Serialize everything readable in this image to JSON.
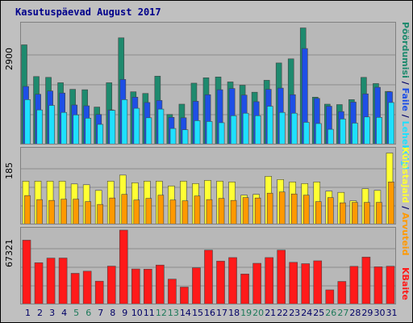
{
  "title": "Kasutuspäevad August 2017",
  "panels": {
    "top": {
      "ymax": "2900",
      "labels": [
        "Pöördumisi",
        "/",
        "Faile",
        "/",
        "Lehekülgi"
      ]
    },
    "middle": {
      "ymax": "185",
      "labels": [
        "Külastajaid",
        "/",
        "Arvuteid"
      ]
    },
    "bottom": {
      "ymax": "67321",
      "labels": [
        "KBaite"
      ]
    }
  },
  "colors": {
    "hits": "#1e8a6e",
    "files": "#1e4fe6",
    "pages": "#1ee0ff",
    "visits": "#ffff33",
    "sites": "#ff9900",
    "kbytes": "#ff1a1a",
    "weekend": "#1e7a5a",
    "weekday": "#000066"
  },
  "chart_data": [
    {
      "type": "bar",
      "title": "Kasutuspäevad August 2017",
      "categories": [
        "1",
        "2",
        "3",
        "4",
        "5",
        "6",
        "7",
        "8",
        "9",
        "10",
        "11",
        "12",
        "13",
        "14",
        "15",
        "16",
        "17",
        "18",
        "19",
        "20",
        "21",
        "22",
        "23",
        "24",
        "25",
        "26",
        "27",
        "28",
        "29",
        "30",
        "31"
      ],
      "weekend_days": [
        "5",
        "6",
        "12",
        "13",
        "19",
        "20",
        "26",
        "27"
      ],
      "ylim": [
        0,
        2900
      ],
      "series": [
        {
          "name": "Pöördumisi",
          "values": [
            2420,
            1650,
            1630,
            1500,
            1340,
            1330,
            910,
            1500,
            2590,
            1280,
            1240,
            1660,
            730,
            980,
            1490,
            1620,
            1640,
            1520,
            1440,
            1270,
            1560,
            1980,
            2080,
            2830,
            1150,
            980,
            970,
            1090,
            1630,
            1480,
            1290
          ]
        },
        {
          "name": "Faile",
          "values": [
            1410,
            1220,
            1300,
            1250,
            960,
            940,
            730,
            840,
            1580,
            1150,
            1020,
            1070,
            660,
            650,
            1050,
            1210,
            1330,
            1360,
            1200,
            1040,
            1340,
            1370,
            1210,
            2330,
            1120,
            930,
            800,
            1030,
            1230,
            1390,
            1280
          ]
        },
        {
          "name": "Lehekülgi",
          "values": [
            1090,
            840,
            950,
            780,
            720,
            640,
            490,
            830,
            1090,
            880,
            650,
            860,
            390,
            360,
            580,
            560,
            530,
            700,
            760,
            700,
            930,
            780,
            760,
            540,
            510,
            370,
            620,
            520,
            670,
            660,
            1020
          ]
        }
      ]
    },
    {
      "type": "bar",
      "categories": [
        "1",
        "2",
        "3",
        "4",
        "5",
        "6",
        "7",
        "8",
        "9",
        "10",
        "11",
        "12",
        "13",
        "14",
        "15",
        "16",
        "17",
        "18",
        "19",
        "20",
        "21",
        "22",
        "23",
        "24",
        "25",
        "26",
        "27",
        "28",
        "29",
        "30",
        "31"
      ],
      "ylim": [
        0,
        185
      ],
      "series": [
        {
          "name": "Külastajaid",
          "values": [
            108,
            108,
            108,
            108,
            101,
            99,
            85,
            108,
            123,
            104,
            108,
            108,
            96,
            108,
            102,
            110,
            108,
            106,
            73,
            75,
            120,
            112,
            106,
            102,
            106,
            83,
            80,
            59,
            89,
            85,
            178
          ]
        },
        {
          "name": "Arvuteid",
          "values": [
            72,
            62,
            60,
            63,
            63,
            57,
            50,
            66,
            75,
            61,
            65,
            73,
            61,
            59,
            71,
            62,
            65,
            60,
            67,
            66,
            78,
            81,
            76,
            73,
            57,
            67,
            54,
            55,
            55,
            55,
            106
          ]
        }
      ]
    },
    {
      "type": "bar",
      "categories": [
        "1",
        "2",
        "3",
        "4",
        "5",
        "6",
        "7",
        "8",
        "9",
        "10",
        "11",
        "12",
        "13",
        "14",
        "15",
        "16",
        "17",
        "18",
        "19",
        "20",
        "21",
        "22",
        "23",
        "24",
        "25",
        "26",
        "27",
        "28",
        "29",
        "30",
        "31"
      ],
      "ylim": [
        0,
        67321
      ],
      "series": [
        {
          "name": "KBaite",
          "values": [
            58230,
            37770,
            42000,
            42060,
            28190,
            30140,
            21070,
            34720,
            67321,
            32130,
            31960,
            35690,
            22950,
            15740,
            33210,
            49200,
            39220,
            42460,
            27580,
            37280,
            42470,
            49200,
            38170,
            36940,
            39520,
            13170,
            20830,
            34510,
            42890,
            34090,
            34620
          ]
        }
      ]
    }
  ]
}
